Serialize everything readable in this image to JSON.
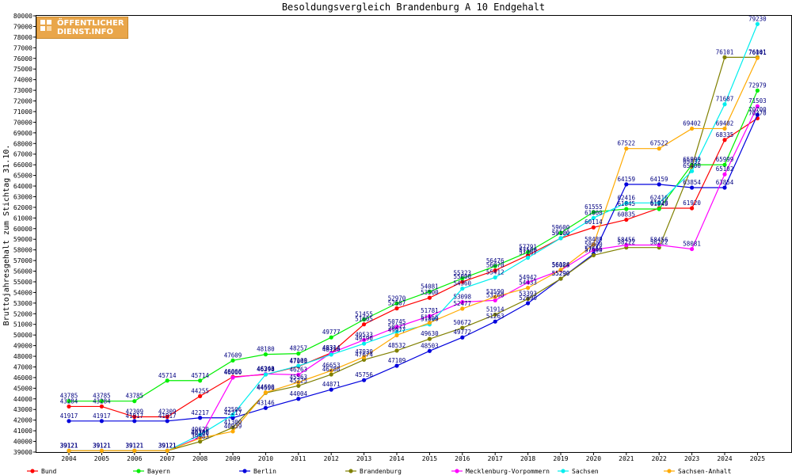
{
  "chart_data": {
    "type": "line",
    "title": "Besoldungsvergleich Brandenburg A 10 Endgehalt",
    "xlabel": "",
    "ylabel": "Bruttojahresgehalt zum Stichtag 31.10.",
    "x": [
      "2004",
      "2005",
      "2006",
      "2007",
      "2008",
      "2009",
      "2010",
      "2011",
      "2012",
      "2013",
      "2014",
      "2015",
      "2016",
      "2017",
      "2018",
      "2019",
      "2020",
      "2021",
      "2022",
      "2023",
      "2024",
      "2025"
    ],
    "ylim": [
      39000,
      80000
    ],
    "ytick_step": 1000,
    "grid": false,
    "legend_position": "bottom",
    "series": [
      {
        "name": "Bund",
        "color": "#ff0000",
        "values": [
          43284,
          43284,
          42309,
          42309,
          44255,
          46066,
          46290,
          47043,
          48314,
          51005,
          52507,
          53500,
          55000,
          56070,
          57500,
          59100,
          60114,
          60835,
          61920,
          61920,
          68335,
          70370
        ]
      },
      {
        "name": "Bayern",
        "color": "#00ee00",
        "values": [
          43785,
          43785,
          43785,
          45714,
          45714,
          47609,
          48180,
          48257,
          49777,
          51455,
          52970,
          54081,
          55323,
          56476,
          57791,
          59600,
          61555,
          61845,
          61845,
          65999,
          65999,
          72979
        ]
      },
      {
        "name": "Berlin",
        "color": "#0000dd",
        "values": [
          41917,
          41917,
          41917,
          41917,
          42217,
          42217,
          43146,
          44004,
          44871,
          45756,
          47109,
          48503,
          49772,
          51263,
          52990,
          55290,
          57616,
          64159,
          64159,
          63854,
          63854,
          70700
        ]
      },
      {
        "name": "Brandenburg",
        "color": "#808000",
        "values": [
          39121,
          39121,
          39121,
          39121,
          39983,
          41300,
          44556,
          45225,
          46288,
          47674,
          48532,
          49630,
          50672,
          51914,
          53393,
          55290,
          57500,
          58222,
          58222,
          65832,
          76101,
          76101
        ]
      },
      {
        "name": "Mecklenburg-Vorpommern",
        "color": "#ff00ff",
        "values": [
          39121,
          39121,
          39121,
          39121,
          40380,
          46000,
          46343,
          46263,
          48314,
          49533,
          50745,
          51781,
          53098,
          53260,
          54942,
          56088,
          58000,
          58456,
          58456,
          58081,
          65102,
          71503
        ]
      },
      {
        "name": "Sachsen",
        "color": "#00eeee",
        "values": [
          39121,
          39121,
          39121,
          39121,
          40620,
          42506,
          46294,
          47100,
          48156,
          49190,
          50277,
          51000,
          54360,
          55412,
          57267,
          59100,
          61000,
          62416,
          62416,
          65400,
          71687,
          79230
        ]
      },
      {
        "name": "Sachsen-Anhalt",
        "color": "#ffaa00",
        "values": [
          39121,
          39121,
          39121,
          39121,
          40300,
          40939,
          44600,
          45563,
          46653,
          47930,
          49977,
          51156,
          52477,
          53590,
          54433,
          56124,
          58489,
          67522,
          67522,
          69402,
          69402,
          76041
        ]
      }
    ]
  }
}
